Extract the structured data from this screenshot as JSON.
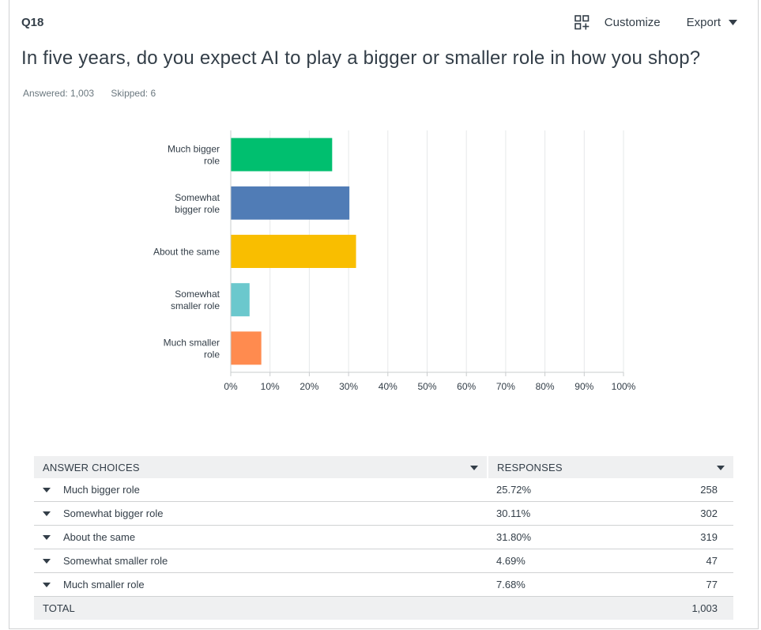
{
  "question": {
    "number": "Q18",
    "title": "In five years, do you expect AI to play a bigger or smaller role in how you shop?",
    "answered": "Answered: 1,003",
    "skipped": "Skipped: 6"
  },
  "toolbar": {
    "customize_label": "Customize",
    "customize_icon": "customize-grid-icon",
    "export_label": "Export",
    "export_icon": "caret-down-icon"
  },
  "chart_data": {
    "type": "bar",
    "orientation": "horizontal",
    "categories": [
      [
        "Much bigger",
        "role"
      ],
      [
        "Somewhat",
        "bigger role"
      ],
      [
        "About the same"
      ],
      [
        "Somewhat",
        "smaller role"
      ],
      [
        "Much smaller",
        "role"
      ]
    ],
    "values": [
      25.72,
      30.11,
      31.8,
      4.69,
      7.68
    ],
    "colors": [
      "#00bf6f",
      "#507cb6",
      "#f9be00",
      "#6bc8cd",
      "#ff8b4f"
    ],
    "xlim": [
      0,
      100
    ],
    "xticks": [
      "0%",
      "10%",
      "20%",
      "30%",
      "40%",
      "50%",
      "60%",
      "70%",
      "80%",
      "90%",
      "100%"
    ],
    "grid": true
  },
  "table": {
    "headers": [
      "ANSWER CHOICES",
      "RESPONSES"
    ],
    "rows": [
      {
        "choice": "Much bigger role",
        "percent": "25.72%",
        "count": "258"
      },
      {
        "choice": "Somewhat bigger role",
        "percent": "30.11%",
        "count": "302"
      },
      {
        "choice": "About the same",
        "percent": "31.80%",
        "count": "319"
      },
      {
        "choice": "Somewhat smaller role",
        "percent": "4.69%",
        "count": "47"
      },
      {
        "choice": "Much smaller role",
        "percent": "7.68%",
        "count": "77"
      }
    ],
    "total_label": "TOTAL",
    "total_count": "1,003"
  }
}
